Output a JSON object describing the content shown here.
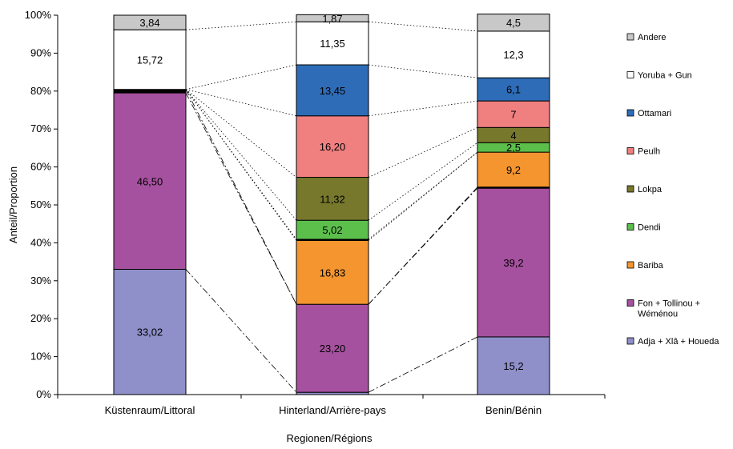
{
  "chart_data": {
    "type": "bar",
    "stacked": true,
    "xlabel": "Regionen/Régions",
    "ylabel": "Anteil/Proportion",
    "ylim": [
      0,
      100
    ],
    "yticks": [
      "0%",
      "10%",
      "20%",
      "30%",
      "40%",
      "50%",
      "60%",
      "70%",
      "80%",
      "90%",
      "100%"
    ],
    "grid": false,
    "legend_position": "right",
    "categories": [
      "Küstenraum/Littoral",
      "Hinterland/Arrière-pays",
      "Benin/Bénin"
    ],
    "series": [
      {
        "name": "Adja + Xlâ + Houeda",
        "color": "#8f8fca",
        "values": [
          33.02,
          0.6,
          15.2
        ],
        "labels": [
          "33,02",
          "",
          "15,2"
        ]
      },
      {
        "name": "Fon + Tollinou + Wéménou",
        "color": "#a6519f",
        "values": [
          46.5,
          23.2,
          39.2
        ],
        "labels": [
          "46,50",
          "23,20",
          "39,2"
        ]
      },
      {
        "name": "",
        "color": "#000000",
        "values": [
          0.92,
          0,
          0.3
        ],
        "labels": [
          "",
          "",
          ""
        ]
      },
      {
        "name": "Bariba",
        "color": "#f5952f",
        "values": [
          0,
          16.83,
          9.2
        ],
        "labels": [
          "",
          "16,83",
          "9,2"
        ]
      },
      {
        "name": "",
        "color": "#000000",
        "values": [
          0,
          0.3,
          0
        ],
        "labels": [
          "",
          "",
          ""
        ]
      },
      {
        "name": "Dendi",
        "color": "#5cbf4c",
        "values": [
          0,
          5.02,
          2.5
        ],
        "labels": [
          "",
          "5,02",
          "2,5"
        ]
      },
      {
        "name": "Lokpa",
        "color": "#77782c",
        "values": [
          0,
          11.32,
          4
        ],
        "labels": [
          "",
          "11,32",
          "4"
        ]
      },
      {
        "name": "Peulh",
        "color": "#f08080",
        "values": [
          0,
          16.2,
          7
        ],
        "labels": [
          "",
          "16,20",
          "7"
        ]
      },
      {
        "name": "Ottamari",
        "color": "#2e6cb8",
        "values": [
          0,
          13.45,
          6.1
        ],
        "labels": [
          "",
          "13,45",
          "6,1"
        ]
      },
      {
        "name": "Yoruba + Gun",
        "color": "#ffffff",
        "values": [
          15.72,
          11.35,
          12.3
        ],
        "labels": [
          "15,72",
          "11,35",
          "12,3"
        ]
      },
      {
        "name": "Andere",
        "color": "#c8c8c8",
        "values": [
          3.84,
          1.87,
          4.5
        ],
        "labels": [
          "3,84",
          "1,87",
          "4,5"
        ]
      }
    ],
    "legend": [
      {
        "name": "Andere",
        "color": "#c8c8c8"
      },
      {
        "name": "Yoruba + Gun",
        "color": "#ffffff"
      },
      {
        "name": "Ottamari",
        "color": "#2e6cb8"
      },
      {
        "name": "Peulh",
        "color": "#f08080"
      },
      {
        "name": "Lokpa",
        "color": "#77782c"
      },
      {
        "name": "Dendi",
        "color": "#5cbf4c"
      },
      {
        "name": "Bariba",
        "color": "#f5952f"
      },
      {
        "name": "Fon + Tollinou + Wéménou",
        "color": "#a6519f"
      },
      {
        "name": "Adja + Xlâ + Houeda",
        "color": "#8f8fca"
      }
    ]
  }
}
